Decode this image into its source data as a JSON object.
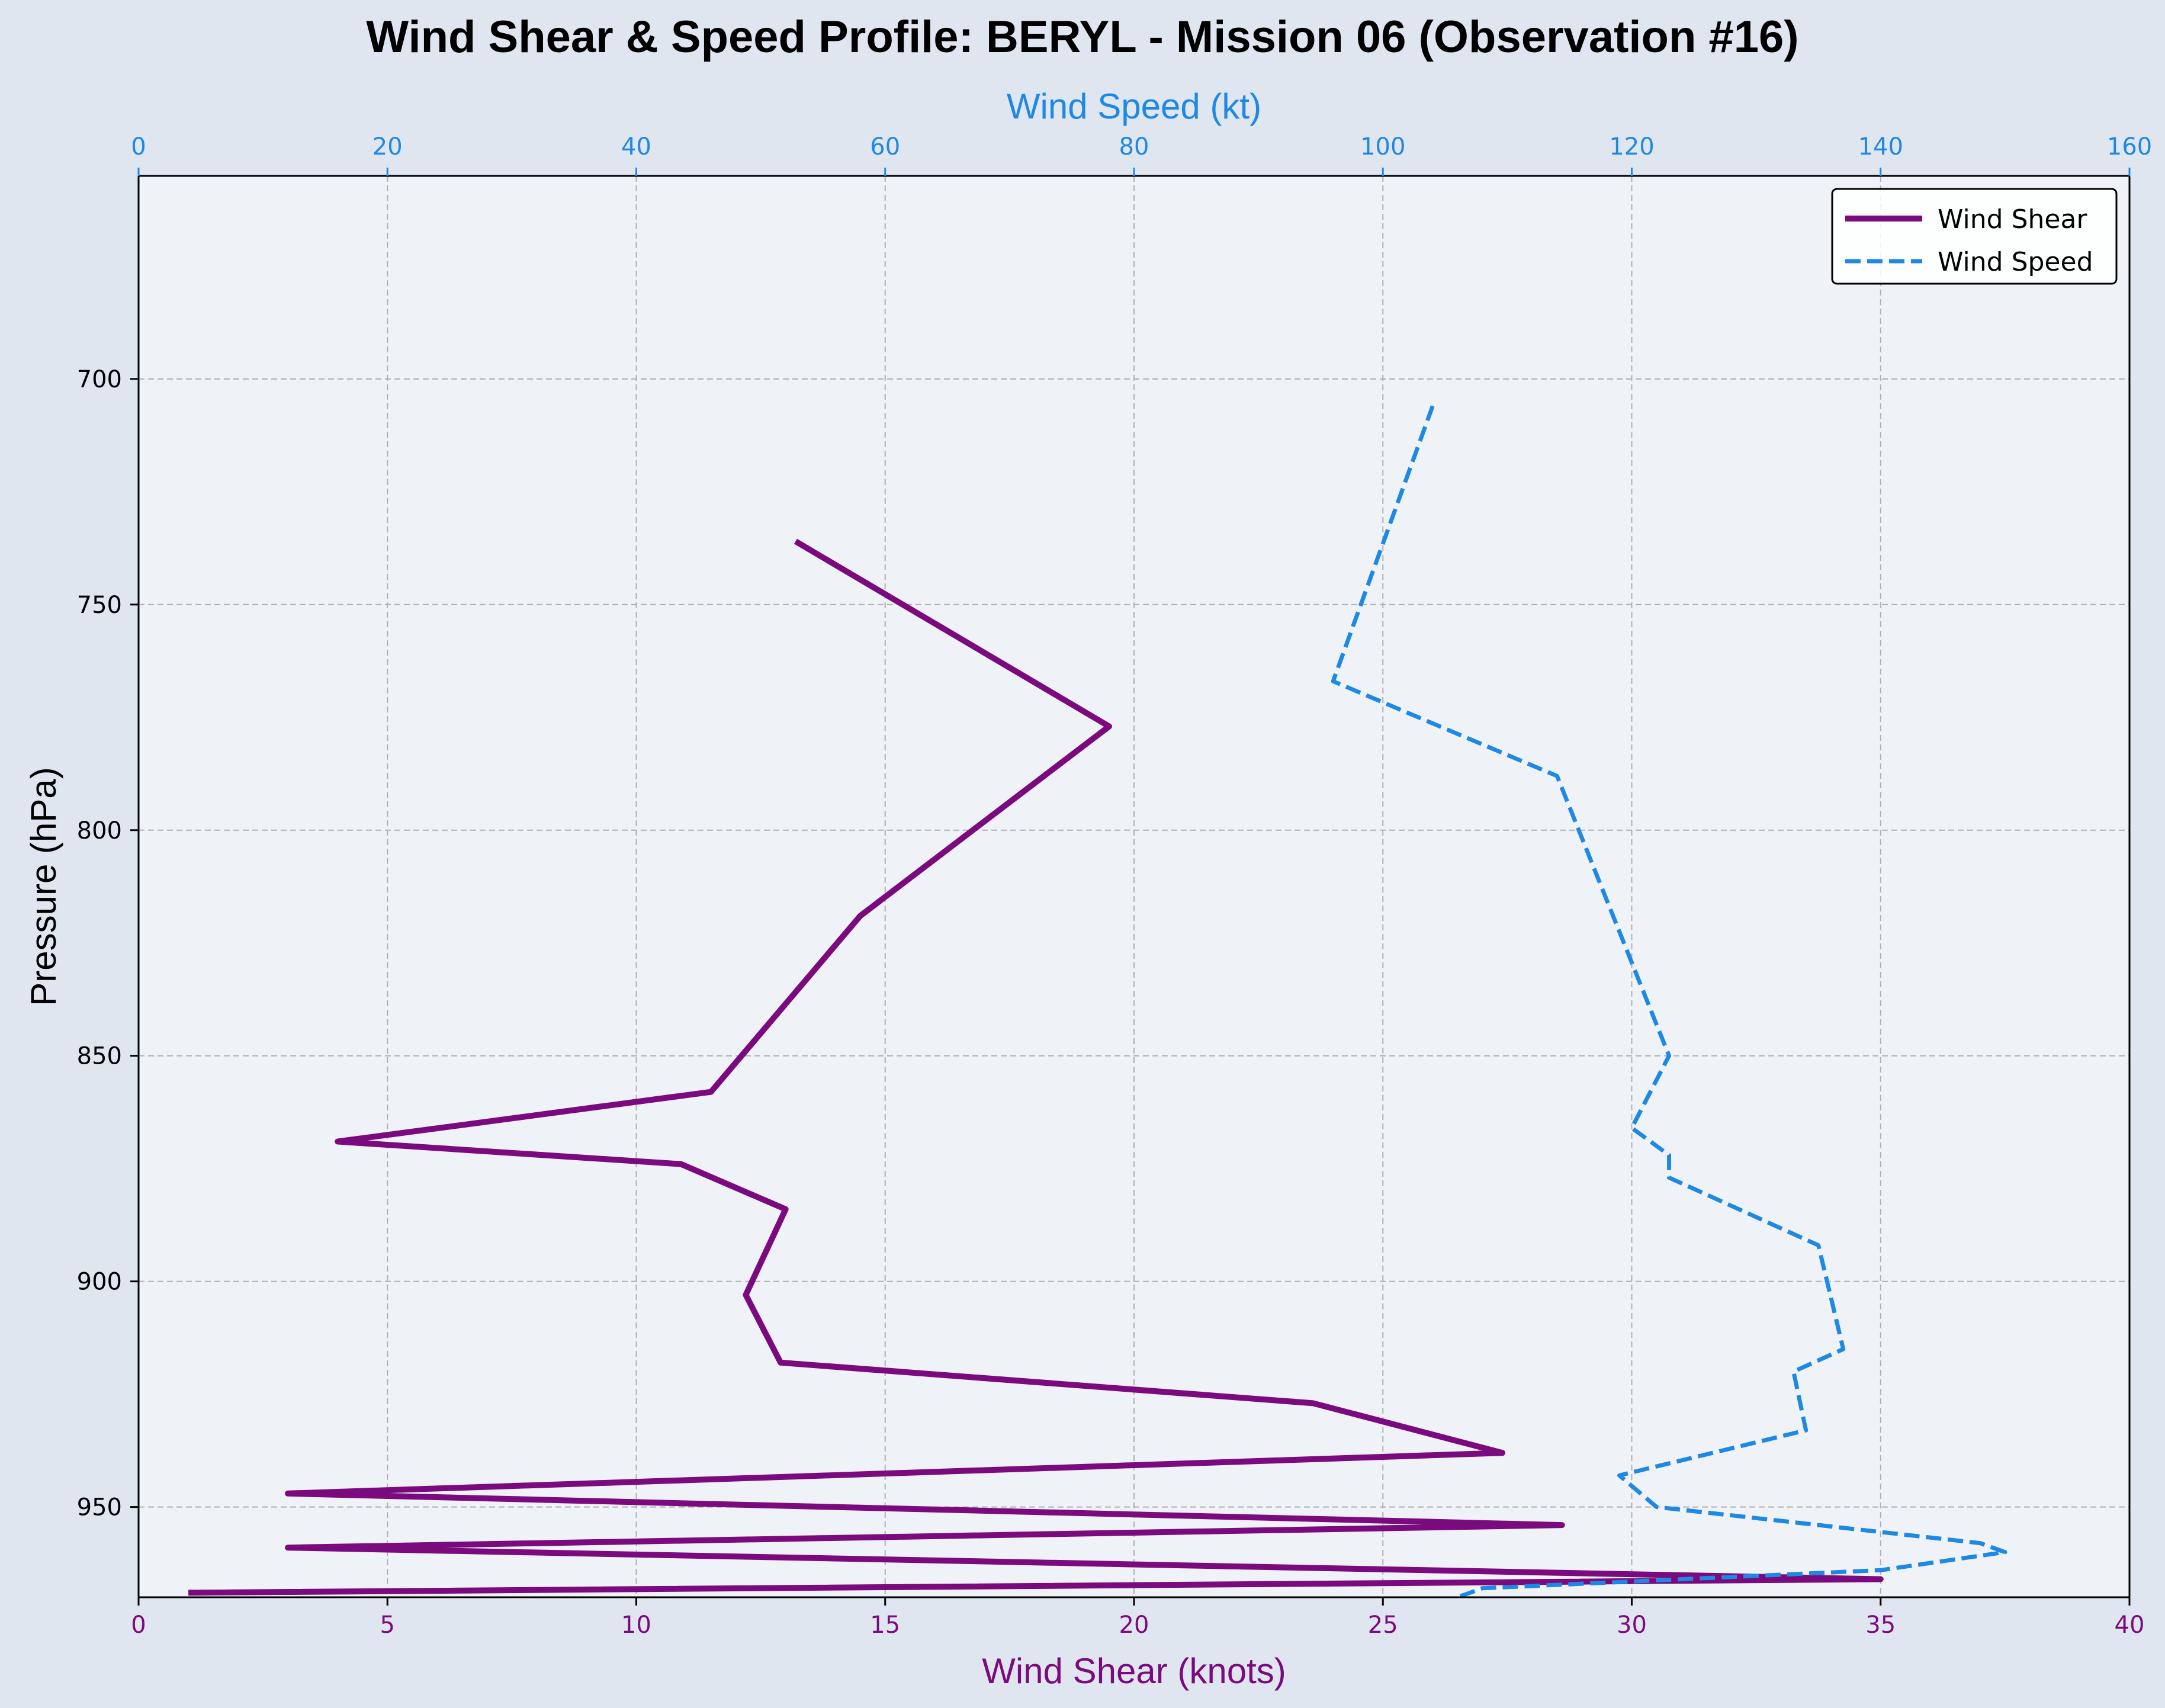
{
  "chart_data": {
    "type": "line",
    "title": "Wind Shear & Speed Profile: BERYL - Mission 06 (Observation #16)",
    "ylabel": "Pressure (hPa)",
    "ylim": [
      970,
      655
    ],
    "y_inverted": true,
    "yticks": [
      700,
      750,
      800,
      850,
      900,
      950
    ],
    "grid": true,
    "legend_position": "top-right",
    "colors": {
      "background": "#e0e6f0",
      "plot_background": "#eff3f8",
      "shear": "#7b0a7e",
      "speed": "#1e88e5",
      "grid": "#b0b0b0"
    },
    "axes": {
      "bottom": {
        "label": "Wind Shear (knots)",
        "range": [
          0,
          40
        ],
        "ticks": [
          0,
          5,
          10,
          15,
          20,
          25,
          30,
          35,
          40
        ]
      },
      "top": {
        "label": "Wind Speed (kt)",
        "range": [
          0,
          160
        ],
        "ticks": [
          0,
          20,
          40,
          60,
          80,
          100,
          120,
          140,
          160
        ]
      }
    },
    "series": [
      {
        "name": "Wind Shear",
        "axis": "bottom",
        "style": "solid",
        "points": [
          {
            "value": 13.2,
            "pressure": 736
          },
          {
            "value": 19.5,
            "pressure": 777
          },
          {
            "value": 14.5,
            "pressure": 819
          },
          {
            "value": 11.5,
            "pressure": 858
          },
          {
            "value": 4.0,
            "pressure": 869
          },
          {
            "value": 10.9,
            "pressure": 874
          },
          {
            "value": 13.0,
            "pressure": 884
          },
          {
            "value": 12.2,
            "pressure": 903
          },
          {
            "value": 12.9,
            "pressure": 918
          },
          {
            "value": 23.6,
            "pressure": 927
          },
          {
            "value": 27.4,
            "pressure": 938
          },
          {
            "value": 3.0,
            "pressure": 947
          },
          {
            "value": 28.6,
            "pressure": 954
          },
          {
            "value": 3.0,
            "pressure": 959
          },
          {
            "value": 35.0,
            "pressure": 966
          },
          {
            "value": 1.0,
            "pressure": 969
          }
        ]
      },
      {
        "name": "Wind Speed",
        "axis": "top",
        "style": "dashed",
        "points": [
          {
            "value": 104,
            "pressure": 706
          },
          {
            "value": 96,
            "pressure": 767
          },
          {
            "value": 114,
            "pressure": 788
          },
          {
            "value": 123,
            "pressure": 850
          },
          {
            "value": 120,
            "pressure": 866
          },
          {
            "value": 123,
            "pressure": 872
          },
          {
            "value": 123,
            "pressure": 877
          },
          {
            "value": 135,
            "pressure": 892
          },
          {
            "value": 137,
            "pressure": 915
          },
          {
            "value": 133,
            "pressure": 920
          },
          {
            "value": 134,
            "pressure": 933
          },
          {
            "value": 119,
            "pressure": 943
          },
          {
            "value": 122,
            "pressure": 950
          },
          {
            "value": 148,
            "pressure": 958
          },
          {
            "value": 150,
            "pressure": 960
          },
          {
            "value": 140,
            "pressure": 964
          },
          {
            "value": 108,
            "pressure": 968
          },
          {
            "value": 106,
            "pressure": 970
          }
        ]
      }
    ]
  }
}
